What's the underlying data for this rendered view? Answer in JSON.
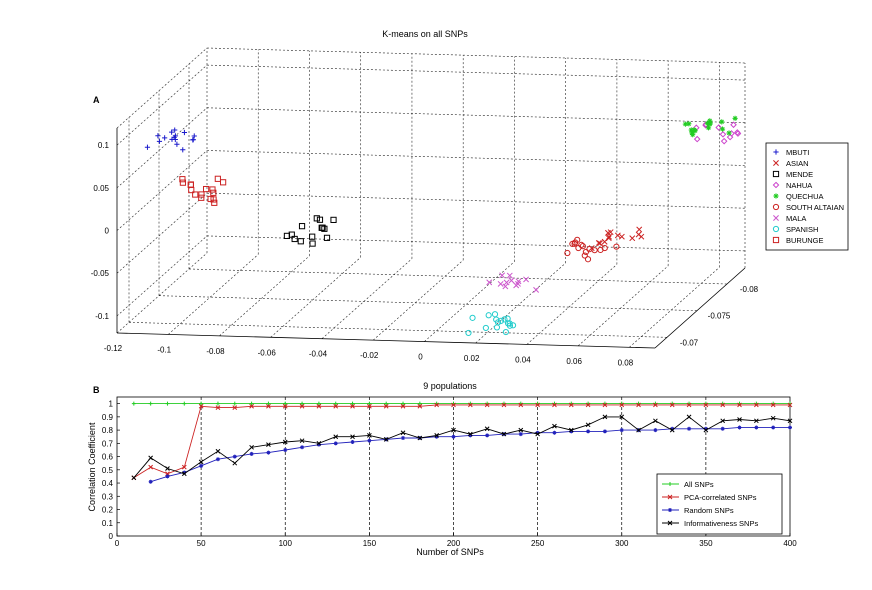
{
  "chart_data": [
    {
      "panel": "A",
      "type": "scatter",
      "title": "K-means on all SNPs",
      "x_ticks": [
        "-0.12",
        "-0.1",
        "-0.08",
        "-0.06",
        "-0.04",
        "-0.02",
        "0",
        "0.02",
        "0.04",
        "0.06",
        "0.08"
      ],
      "y_ticks": [
        "-0.07",
        "-0.075",
        "-0.08"
      ],
      "z_ticks": [
        "0.1",
        "0.05",
        "0",
        "-0.05",
        "-0.1"
      ],
      "xlim": [
        -0.12,
        0.09
      ],
      "ylim": [
        -0.083,
        -0.068
      ],
      "zlim": [
        -0.12,
        0.12
      ],
      "grid": true,
      "legend_position": "right",
      "series": [
        {
          "name": "MBUTI",
          "marker": "+",
          "color": "#1a1acc",
          "center": [
            -0.103,
            -0.0705,
            0.092
          ],
          "n": 16
        },
        {
          "name": "ASIAN",
          "marker": "x",
          "color": "#cc2222",
          "center": [
            0.06,
            -0.0745,
            -0.035
          ],
          "n": 14
        },
        {
          "name": "MENDE",
          "marker": "square",
          "color": "#000000",
          "center": [
            -0.05,
            -0.0705,
            -0.01
          ],
          "n": 14
        },
        {
          "name": "NAHUA",
          "marker": "diamond",
          "color": "#cc44cc",
          "center": [
            0.085,
            -0.081,
            0.055
          ],
          "n": 12
        },
        {
          "name": "QUECHUA",
          "marker": "star",
          "color": "#22cc22",
          "center": [
            0.078,
            -0.082,
            0.05
          ],
          "n": 16
        },
        {
          "name": "SOUTH ALTAIAN",
          "marker": "circle",
          "color": "#cc2222",
          "center": [
            0.05,
            -0.074,
            -0.045
          ],
          "n": 16
        },
        {
          "name": "MALA",
          "marker": "x",
          "color": "#cc55cc",
          "center": [
            0.025,
            -0.072,
            -0.075
          ],
          "n": 12
        },
        {
          "name": "SPANISH",
          "marker": "circle",
          "color": "#22cccc",
          "center": [
            0.02,
            -0.07,
            -0.11
          ],
          "n": 16
        },
        {
          "name": "BURUNGE",
          "marker": "square",
          "color": "#cc2222",
          "center": [
            -0.095,
            -0.071,
            0.031
          ],
          "n": 16
        }
      ]
    },
    {
      "panel": "B",
      "type": "line",
      "title": "9 populations",
      "xlabel": "Number of SNPs",
      "ylabel": "Correlation Coefficient",
      "xlim": [
        0,
        400
      ],
      "ylim": [
        0,
        1.05
      ],
      "x_ticks": [
        0,
        50,
        100,
        150,
        200,
        250,
        300,
        350,
        400
      ],
      "y_ticks": [
        0,
        0.1,
        0.2,
        0.3,
        0.4,
        0.5,
        0.6,
        0.7,
        0.8,
        0.9,
        1
      ],
      "y_tick_labels": [
        "0",
        "0.1",
        "0.2",
        "0.3",
        "0.4",
        "0.5",
        "0.6",
        "0.7",
        "0.8",
        "0.9",
        "1"
      ],
      "grid": false,
      "vlines": [
        50,
        100,
        150,
        200,
        250,
        300,
        350
      ],
      "legend_position": "bottom-right",
      "x": [
        10,
        20,
        30,
        40,
        50,
        60,
        70,
        80,
        90,
        100,
        110,
        120,
        130,
        140,
        150,
        160,
        170,
        180,
        190,
        200,
        210,
        220,
        230,
        240,
        250,
        260,
        270,
        280,
        290,
        300,
        310,
        320,
        330,
        340,
        350,
        360,
        370,
        380,
        390,
        400
      ],
      "series": [
        {
          "name": "All SNPs",
          "color": "#22cc22",
          "marker": "+",
          "values": [
            1,
            1,
            1,
            1,
            1,
            1,
            1,
            1,
            1,
            1,
            1,
            1,
            1,
            1,
            1,
            1,
            1,
            1,
            1,
            1,
            1,
            1,
            1,
            1,
            1,
            1,
            1,
            1,
            1,
            1,
            1,
            1,
            1,
            1,
            1,
            1,
            1,
            1,
            1,
            1
          ]
        },
        {
          "name": "PCA-correlated SNPs",
          "color": "#cc2222",
          "marker": "x",
          "values": [
            0.44,
            0.52,
            0.47,
            0.52,
            0.98,
            0.97,
            0.97,
            0.98,
            0.98,
            0.98,
            0.98,
            0.98,
            0.98,
            0.98,
            0.98,
            0.98,
            0.98,
            0.98,
            0.99,
            0.99,
            0.99,
            0.99,
            0.99,
            0.99,
            0.99,
            0.99,
            0.99,
            0.99,
            0.99,
            0.99,
            0.99,
            0.99,
            0.99,
            0.99,
            0.99,
            0.99,
            0.99,
            0.99,
            0.99,
            0.99
          ]
        },
        {
          "name": "Random SNPs",
          "color": "#2222bb",
          "marker": "*",
          "values": [
            null,
            0.41,
            0.45,
            0.48,
            0.53,
            0.58,
            0.6,
            0.62,
            0.63,
            0.65,
            0.67,
            0.69,
            0.7,
            0.71,
            0.72,
            0.73,
            0.74,
            0.74,
            0.75,
            0.75,
            0.76,
            0.76,
            0.77,
            0.77,
            0.78,
            0.78,
            0.79,
            0.79,
            0.79,
            0.8,
            0.8,
            0.8,
            0.81,
            0.81,
            0.81,
            0.81,
            0.82,
            0.82,
            0.82,
            0.82
          ]
        },
        {
          "name": "Informativeness SNPs",
          "color": "#000000",
          "marker": "x",
          "values": [
            0.44,
            0.59,
            0.51,
            0.47,
            0.56,
            0.64,
            0.55,
            0.67,
            0.69,
            0.71,
            0.72,
            0.7,
            0.75,
            0.75,
            0.76,
            0.73,
            0.78,
            0.74,
            0.76,
            0.8,
            0.77,
            0.81,
            0.77,
            0.8,
            0.77,
            0.83,
            0.8,
            0.84,
            0.9,
            0.9,
            0.8,
            0.87,
            0.8,
            0.9,
            0.8,
            0.87,
            0.88,
            0.87,
            0.89,
            0.87
          ]
        }
      ]
    }
  ],
  "panel_labels": {
    "a": "A",
    "b": "B"
  }
}
